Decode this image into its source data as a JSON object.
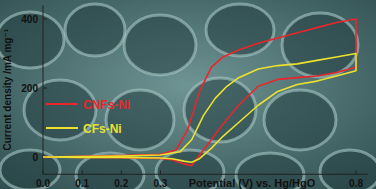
{
  "chart_data": {
    "type": "line",
    "x_label": "Potential (V) vs. Hg/HgO",
    "y_label": "Current density /mA mg⁻¹",
    "xlim": [
      0,
      0.83
    ],
    "ylim": [
      -50,
      440
    ],
    "xticks": [
      {
        "value": 0,
        "label": "0.0"
      },
      {
        "value": 0.1,
        "label": "0.1"
      },
      {
        "value": 0.2,
        "label": "0.2"
      },
      {
        "value": 0.3,
        "label": "0.3"
      },
      {
        "value": 0.8,
        "label": "0.8"
      }
    ],
    "yticks": [
      0,
      200,
      400
    ],
    "legend": "left",
    "series": [
      {
        "name": "CNFs-Ni",
        "color": "#e8262b",
        "x": [
          0,
          0.1,
          0.2,
          0.3,
          0.34,
          0.37,
          0.4,
          0.43,
          0.46,
          0.5,
          0.55,
          0.6,
          0.65,
          0.7,
          0.75,
          0.8,
          0.8,
          0.75,
          0.7,
          0.65,
          0.6,
          0.55,
          0.5,
          0.46,
          0.43,
          0.4,
          0.38,
          0.36,
          0.33,
          0.3,
          0.2,
          0.1,
          0
        ],
        "values": [
          0,
          2,
          4,
          8,
          20,
          80,
          190,
          260,
          290,
          310,
          330,
          345,
          360,
          375,
          390,
          400,
          260,
          245,
          235,
          230,
          225,
          205,
          150,
          95,
          50,
          5,
          -25,
          -20,
          -8,
          -4,
          -2,
          -1,
          0
        ]
      },
      {
        "name": "CFs-Ni",
        "color": "#ece22e",
        "x": [
          0,
          0.1,
          0.2,
          0.3,
          0.35,
          0.38,
          0.41,
          0.44,
          0.47,
          0.5,
          0.55,
          0.6,
          0.65,
          0.7,
          0.75,
          0.8,
          0.8,
          0.75,
          0.7,
          0.65,
          0.6,
          0.55,
          0.5,
          0.46,
          0.43,
          0.4,
          0.38,
          0.36,
          0.33,
          0.3,
          0.2,
          0.1,
          0
        ],
        "values": [
          0,
          1,
          3,
          6,
          15,
          50,
          120,
          170,
          205,
          230,
          255,
          265,
          270,
          280,
          290,
          300,
          250,
          235,
          220,
          210,
          190,
          150,
          100,
          60,
          25,
          -5,
          -15,
          -12,
          -5,
          -3,
          -1,
          -1,
          0
        ]
      }
    ]
  }
}
